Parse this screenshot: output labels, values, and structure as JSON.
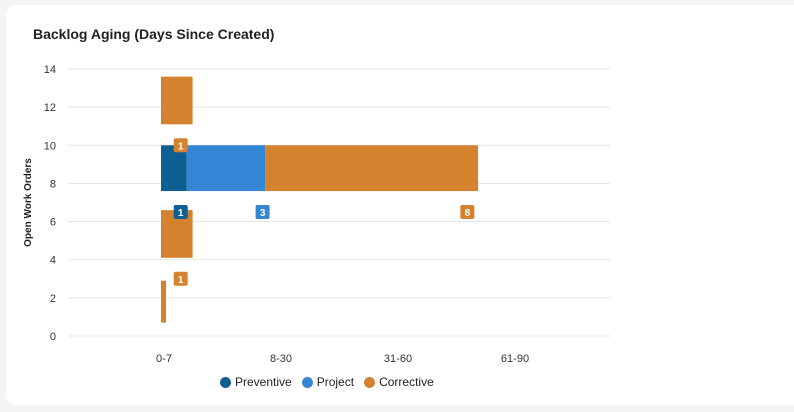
{
  "card": {
    "title": "Backlog Aging (Days Since Created)"
  },
  "chart_data": {
    "type": "bar",
    "title": "Backlog Aging (Days Since Created)",
    "xlabel": "",
    "ylabel": "Open Work Orders",
    "categories": [
      "0-7",
      "8-30",
      "31-60",
      "61-90"
    ],
    "y_ticks": [
      0,
      2,
      4,
      6,
      8,
      10,
      12,
      14
    ],
    "ylim": [
      0,
      14
    ],
    "grid": true,
    "legend_position": "bottom",
    "series": [
      {
        "name": "Preventive",
        "color": "#0e5f94"
      },
      {
        "name": "Project",
        "color": "#3585d6"
      },
      {
        "name": "Corrective",
        "color": "#d4822e"
      }
    ],
    "segments": [
      {
        "series": "Corrective",
        "x0": 0.0,
        "x1": 0.02,
        "y0": 0.7,
        "y1": 2.9,
        "label": "1",
        "label_at": [
          0.1,
          3.0
        ]
      },
      {
        "series": "Corrective",
        "x0": 0.0,
        "x1": 0.27,
        "y0": 4.1,
        "y1": 6.6,
        "label": "",
        "label_at": null
      },
      {
        "series": "Preventive",
        "x0": 0.0,
        "x1": 0.22,
        "y0": 7.6,
        "y1": 10.0,
        "label": "1",
        "label_at": [
          0.1,
          6.5
        ]
      },
      {
        "series": "Project",
        "x0": 0.22,
        "x1": 0.89,
        "y0": 7.6,
        "y1": 10.0,
        "label": "3",
        "label_at": [
          0.8,
          6.5
        ]
      },
      {
        "series": "Corrective",
        "x0": 0.89,
        "x1": 2.71,
        "y0": 7.6,
        "y1": 10.0,
        "label": "8",
        "label_at": [
          2.55,
          6.5
        ]
      },
      {
        "series": "Corrective",
        "x0": 0.0,
        "x1": 0.27,
        "y0": 11.1,
        "y1": 13.6,
        "label": "1",
        "label_at": [
          0.1,
          10.0
        ]
      }
    ]
  }
}
